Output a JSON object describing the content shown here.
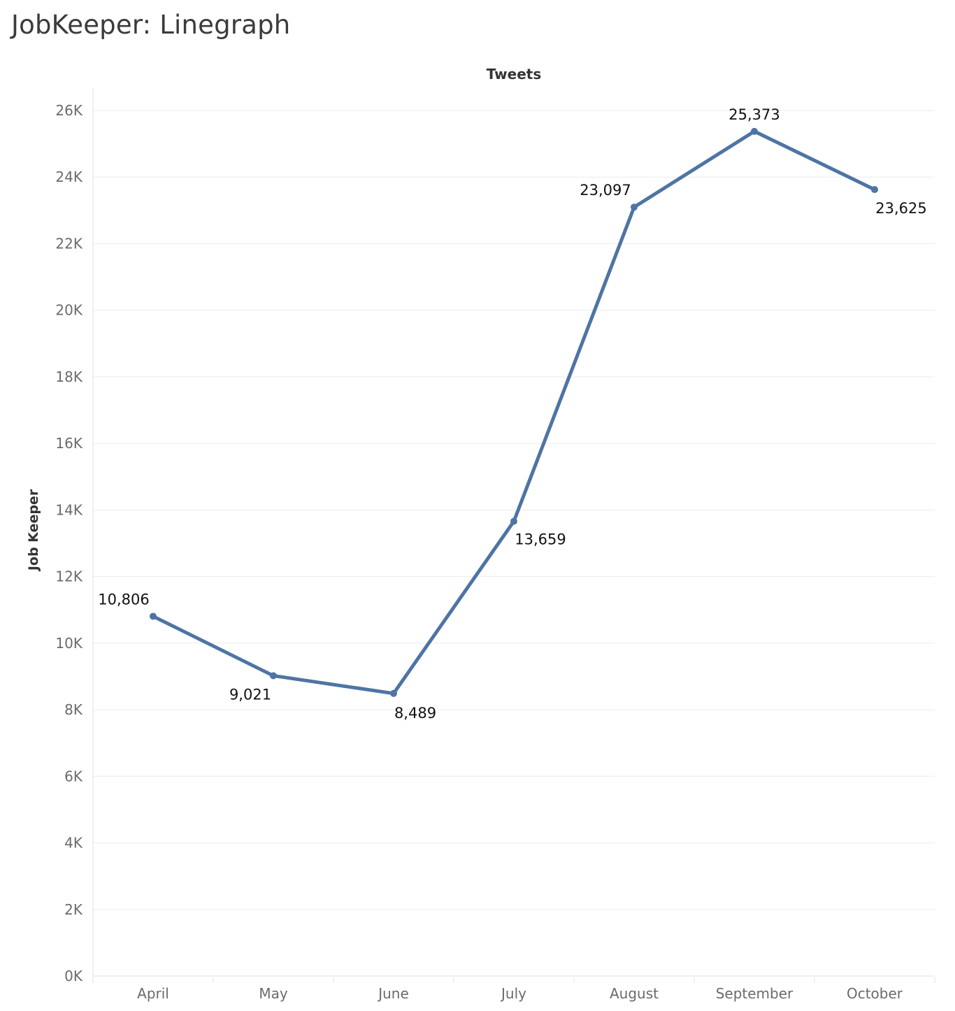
{
  "page": {
    "title": "JobKeeper: Linegraph"
  },
  "colors": {
    "line": "#4e74a4",
    "gridline": "#ececec",
    "tick_text": "#6b6b6b",
    "data_label_text": "#111111"
  },
  "chart_data": {
    "type": "line",
    "header": "Tweets",
    "title": "",
    "xlabel": "",
    "ylabel": "Job Keeper",
    "categories": [
      "April",
      "May",
      "June",
      "July",
      "August",
      "September",
      "October"
    ],
    "series": [
      {
        "values": [
          10806,
          9021,
          8489,
          13659,
          23097,
          25373,
          23625
        ]
      }
    ],
    "data_labels": [
      "10,806",
      "9,021",
      "8,489",
      "13,659",
      "23,097",
      "25,373",
      "23,625"
    ],
    "label_positions": [
      "above",
      "below",
      "below",
      "below",
      "above",
      "above",
      "below"
    ],
    "ylim": [
      0,
      26000
    ],
    "yticks": [
      0,
      2000,
      4000,
      6000,
      8000,
      10000,
      12000,
      14000,
      16000,
      18000,
      20000,
      22000,
      24000,
      26000
    ],
    "ytick_labels": [
      "0K",
      "2K",
      "4K",
      "6K",
      "8K",
      "10K",
      "12K",
      "14K",
      "16K",
      "18K",
      "20K",
      "22K",
      "24K",
      "26K"
    ],
    "grid": true,
    "markers": true,
    "legend": "none"
  }
}
